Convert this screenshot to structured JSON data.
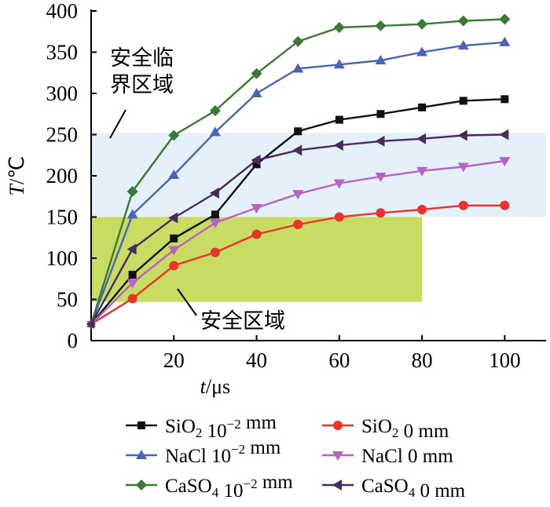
{
  "chart_data": {
    "type": "line",
    "xlabel": {
      "var": "t",
      "unit": "/μs"
    },
    "ylabel": {
      "var": "T",
      "unit": "/℃"
    },
    "xlim": [
      0,
      110
    ],
    "ylim": [
      0,
      400
    ],
    "xticks": [
      20,
      40,
      60,
      80,
      100
    ],
    "yticks": [
      0,
      50,
      100,
      150,
      200,
      250,
      300,
      350,
      400
    ],
    "grid": false,
    "legend_position": "bottom",
    "regions": [
      {
        "label": "安全临\n界区域",
        "x_range": [
          0,
          110
        ],
        "y_range": [
          150,
          252
        ],
        "color": "#e4f0fa"
      },
      {
        "label": "安全区域",
        "x_range": [
          0,
          80
        ],
        "y_range": [
          47,
          150
        ],
        "color": "#c9dc62"
      }
    ],
    "series": [
      {
        "name": "SiO2 10^-2 mm",
        "legend": {
          "base": "SiO",
          "sub": "2",
          "mid": " 10",
          "sup": "−2",
          "tail": " mm"
        },
        "color": "#111111",
        "marker": "square",
        "x": [
          0,
          10,
          20,
          30,
          40,
          50,
          60,
          70,
          80,
          90,
          100
        ],
        "y": [
          20,
          80,
          124,
          153,
          214,
          254,
          268,
          275,
          283,
          291,
          293
        ]
      },
      {
        "name": "SiO2 0 mm",
        "legend": {
          "base": "SiO",
          "sub": "2",
          "mid": " 0 mm",
          "sup": "",
          "tail": ""
        },
        "color": "#e8342a",
        "marker": "circle",
        "x": [
          0,
          10,
          20,
          30,
          40,
          50,
          60,
          70,
          80,
          90,
          100
        ],
        "y": [
          20,
          51,
          91,
          107,
          129,
          141,
          150,
          155,
          159,
          164,
          164
        ]
      },
      {
        "name": "NaCl 10^-2 mm",
        "legend": {
          "base": "NaCl",
          "sub": "",
          "mid": " 10",
          "sup": "−2",
          "tail": " mm"
        },
        "color": "#4a63b5",
        "marker": "triangle-up",
        "x": [
          0,
          10,
          20,
          30,
          40,
          50,
          60,
          70,
          80,
          90,
          100
        ],
        "y": [
          20,
          153,
          201,
          253,
          300,
          330,
          335,
          340,
          350,
          358,
          362
        ]
      },
      {
        "name": "NaCl 0 mm",
        "legend": {
          "base": "NaCl",
          "sub": "",
          "mid": " 0 mm",
          "sup": "",
          "tail": ""
        },
        "color": "#b763c6",
        "marker": "triangle-down",
        "x": [
          0,
          10,
          20,
          30,
          40,
          50,
          60,
          70,
          80,
          90,
          100
        ],
        "y": [
          20,
          70,
          110,
          143,
          161,
          178,
          191,
          199,
          206,
          211,
          218
        ]
      },
      {
        "name": "CaSO4 10^-2 mm",
        "legend": {
          "base": "CaSO",
          "sub": "4",
          "mid": " 10",
          "sup": "−2",
          "tail": " mm"
        },
        "color": "#3b7a35",
        "marker": "diamond",
        "x": [
          0,
          10,
          20,
          30,
          40,
          50,
          60,
          70,
          80,
          90,
          100
        ],
        "y": [
          20,
          181,
          249,
          279,
          324,
          363,
          380,
          382,
          384,
          388,
          390
        ]
      },
      {
        "name": "CaSO4 0 mm",
        "legend": {
          "base": "CaSO",
          "sub": "4",
          "mid": " 0 mm",
          "sup": "",
          "tail": ""
        },
        "color": "#4a2a5e",
        "marker": "triangle-left",
        "x": [
          0,
          10,
          20,
          30,
          40,
          50,
          60,
          70,
          80,
          90,
          100
        ],
        "y": [
          20,
          111,
          149,
          179,
          219,
          231,
          237,
          242,
          245,
          249,
          250
        ]
      }
    ]
  }
}
